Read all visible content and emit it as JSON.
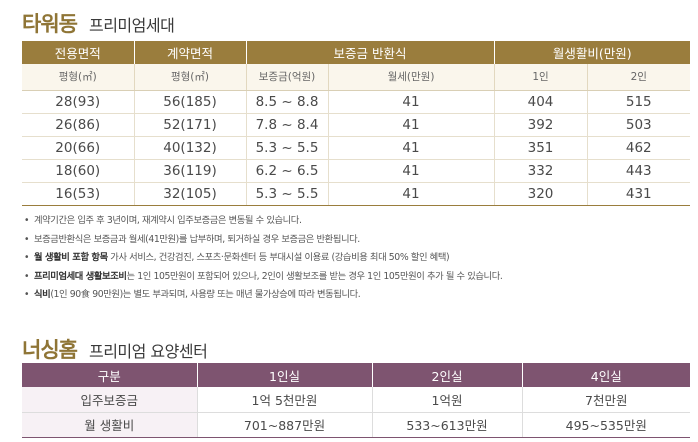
{
  "tower": {
    "title": "타워동",
    "subtitle": "프리미엄세대",
    "header1": [
      "전용면적",
      "계약면적",
      "보증금 반환식",
      "월생활비(만원)"
    ],
    "header2": [
      "평형(㎡)",
      "평형(㎡)",
      "보증금(억원)",
      "월세(만원)",
      "1인",
      "2인"
    ],
    "rows": [
      [
        "28(93)",
        "56(185)",
        "8.5 ~  8.8",
        "41",
        "404",
        "515"
      ],
      [
        "26(86)",
        "52(171)",
        "7.8 ~ 8.4",
        "41",
        "392",
        "503"
      ],
      [
        "20(66)",
        "40(132)",
        "5.3 ~ 5.5",
        "41",
        "351",
        "462"
      ],
      [
        "18(60)",
        "36(119)",
        "6.2 ~ 6.5",
        "41",
        "332",
        "443"
      ],
      [
        "16(53)",
        "32(105)",
        "5.3 ~ 5.5",
        "41",
        "320",
        "431"
      ]
    ]
  },
  "notes": {
    "bullet": "•",
    "n1": "계약기간은 입주 후 3년이며, 재계약시 입주보증금은 변동될 수 있습니다.",
    "n2": "보증금반환식은 보증금과 월세(41만원)를 납부하며, 퇴거하실 경우 보증금은 반환됩니다.",
    "n3_bold": "월 생활비 포함 항목",
    "n3_rest": " 가사 서비스, 건강검진, 스포츠·문화센터 등 부대시설 이용료 (강습비용 최대 50% 할인 혜택)",
    "n4_bold": "프리미엄세대 생활보조비",
    "n4_rest": "는 1인 105만원이 포함되어 있으나, 2인이 생활보조를 받는 경우 1인 105만원이 추가 될 수 있습니다.",
    "n5_bold": "식비",
    "n5_rest": "(1인 90食 90만원)는 별도 부과되며, 사용량 또는 매년 물가상승에 따라 변동됩니다."
  },
  "nursing": {
    "title": "너싱홈",
    "subtitle": "프리미엄 요양센터",
    "header": [
      "구분",
      "1인실",
      "2인실",
      "4인실"
    ],
    "rows": [
      [
        "입주보증금",
        "1억 5천만원",
        "1억원",
        "7천만원"
      ],
      [
        "월 생활비",
        "701~887만원",
        "533~613만원",
        "495~535만원"
      ]
    ]
  }
}
